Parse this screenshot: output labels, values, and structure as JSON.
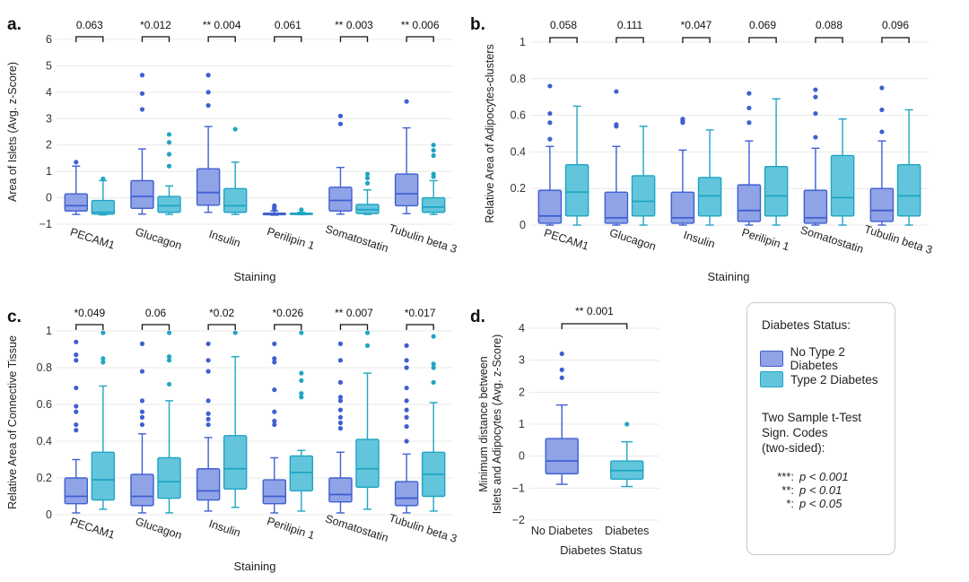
{
  "colors": {
    "no_t2d_fill": "#8FA3E6",
    "no_t2d_line": "#3F5FD1",
    "t2d_fill": "#63C5DB",
    "t2d_line": "#1FA5C4"
  },
  "staining_categories": [
    "PECAM1",
    "Glucagon",
    "Insulin",
    "Perilipin 1",
    "Somatostatin",
    "Tubulin beta 3"
  ],
  "chart_data": [
    {
      "panel": "a.",
      "type": "box",
      "xlabel": "Staining",
      "ylabel": "Area of Islets (Avg. z-Score)",
      "ylim": [
        -1,
        6
      ],
      "yticks": [
        -1,
        0,
        1,
        2,
        3,
        4,
        5,
        6
      ],
      "ytick_labels": [
        "−1",
        "0",
        "1",
        "2",
        "3",
        "4",
        "5",
        "6"
      ],
      "categories": [
        "PECAM1",
        "Glucagon",
        "Insulin",
        "Perilipin 1",
        "Somatostatin",
        "Tubulin beta 3"
      ],
      "significance": [
        "0.063",
        "*0.012",
        "** 0.004",
        "0.061",
        "** 0.003",
        "** 0.006"
      ],
      "series": [
        {
          "name": "No Type 2 Diabetes",
          "boxes": [
            {
              "min": -0.63,
              "q1": -0.5,
              "median": -0.3,
              "q3": 0.15,
              "max": 1.2,
              "outliers": [
                1.35
              ]
            },
            {
              "min": -0.62,
              "q1": -0.4,
              "median": 0.05,
              "q3": 0.65,
              "max": 1.85,
              "outliers": [
                3.35,
                3.95,
                4.65
              ]
            },
            {
              "min": -0.55,
              "q1": -0.28,
              "median": 0.2,
              "q3": 1.1,
              "max": 2.7,
              "outliers": [
                3.5,
                4.0,
                4.65
              ]
            },
            {
              "min": -0.66,
              "q1": -0.64,
              "median": -0.62,
              "q3": -0.58,
              "max": -0.5,
              "outliers": [
                -0.3,
                -0.35,
                -0.4,
                -0.45
              ]
            },
            {
              "min": -0.62,
              "q1": -0.5,
              "median": -0.1,
              "q3": 0.4,
              "max": 1.15,
              "outliers": [
                2.8,
                3.1
              ]
            },
            {
              "min": -0.6,
              "q1": -0.3,
              "median": 0.15,
              "q3": 0.9,
              "max": 2.65,
              "outliers": [
                3.65
              ]
            }
          ]
        },
        {
          "name": "Type 2 Diabetes",
          "boxes": [
            {
              "min": -0.65,
              "q1": -0.62,
              "median": -0.55,
              "q3": -0.1,
              "max": 0.65,
              "outliers": [
                0.72
              ]
            },
            {
              "min": -0.63,
              "q1": -0.55,
              "median": -0.3,
              "q3": 0.05,
              "max": 0.45,
              "outliers": [
                1.2,
                1.65,
                2.1,
                2.4
              ]
            },
            {
              "min": -0.63,
              "q1": -0.55,
              "median": -0.3,
              "q3": 0.35,
              "max": 1.35,
              "outliers": [
                2.6
              ]
            },
            {
              "min": -0.64,
              "q1": -0.63,
              "median": -0.61,
              "q3": -0.58,
              "max": -0.55,
              "outliers": [
                -0.45
              ]
            },
            {
              "min": -0.63,
              "q1": -0.6,
              "median": -0.45,
              "q3": -0.25,
              "max": 0.3,
              "outliers": [
                0.55,
                0.75,
                0.9
              ]
            },
            {
              "min": -0.63,
              "q1": -0.55,
              "median": -0.35,
              "q3": 0.0,
              "max": 0.65,
              "outliers": [
                0.8,
                0.9,
                1.6,
                1.8,
                2.0
              ]
            }
          ]
        }
      ]
    },
    {
      "panel": "b.",
      "type": "box",
      "xlabel": "Staining",
      "ylabel": "Relative Area of Adipocytes-clusters",
      "ylim": [
        0,
        1
      ],
      "yticks": [
        0,
        0.2,
        0.4,
        0.6,
        0.8,
        1
      ],
      "ytick_labels": [
        "0",
        "0.2",
        "0.4",
        "0.6",
        "0.8",
        "1"
      ],
      "categories": [
        "PECAM1",
        "Glucagon",
        "Insulin",
        "Perilipin 1",
        "Somatostatin",
        "Tubulin beta 3"
      ],
      "significance": [
        "0.058",
        "0.111",
        "*0.047",
        "0.069",
        "0.088",
        "0.096"
      ],
      "series": [
        {
          "name": "No Type 2 Diabetes",
          "boxes": [
            {
              "min": 0.0,
              "q1": 0.01,
              "median": 0.05,
              "q3": 0.19,
              "max": 0.43,
              "outliers": [
                0.47,
                0.56,
                0.61,
                0.76
              ]
            },
            {
              "min": 0.0,
              "q1": 0.01,
              "median": 0.04,
              "q3": 0.18,
              "max": 0.43,
              "outliers": [
                0.54,
                0.55,
                0.73
              ]
            },
            {
              "min": 0.0,
              "q1": 0.01,
              "median": 0.04,
              "q3": 0.18,
              "max": 0.41,
              "outliers": [
                0.56,
                0.57,
                0.58
              ]
            },
            {
              "min": 0.0,
              "q1": 0.02,
              "median": 0.08,
              "q3": 0.22,
              "max": 0.46,
              "outliers": [
                0.56,
                0.64,
                0.72
              ]
            },
            {
              "min": 0.0,
              "q1": 0.01,
              "median": 0.04,
              "q3": 0.19,
              "max": 0.42,
              "outliers": [
                0.48,
                0.61,
                0.7,
                0.74
              ]
            },
            {
              "min": 0.0,
              "q1": 0.02,
              "median": 0.08,
              "q3": 0.2,
              "max": 0.46,
              "outliers": [
                0.51,
                0.63,
                0.75
              ]
            }
          ]
        },
        {
          "name": "Type 2 Diabetes",
          "boxes": [
            {
              "min": 0.0,
              "q1": 0.05,
              "median": 0.18,
              "q3": 0.33,
              "max": 0.65,
              "outliers": []
            },
            {
              "min": 0.0,
              "q1": 0.05,
              "median": 0.13,
              "q3": 0.27,
              "max": 0.54,
              "outliers": []
            },
            {
              "min": 0.0,
              "q1": 0.05,
              "median": 0.16,
              "q3": 0.26,
              "max": 0.52,
              "outliers": []
            },
            {
              "min": 0.0,
              "q1": 0.05,
              "median": 0.16,
              "q3": 0.32,
              "max": 0.69,
              "outliers": []
            },
            {
              "min": 0.0,
              "q1": 0.05,
              "median": 0.15,
              "q3": 0.38,
              "max": 0.58,
              "outliers": []
            },
            {
              "min": 0.0,
              "q1": 0.05,
              "median": 0.16,
              "q3": 0.33,
              "max": 0.63,
              "outliers": []
            }
          ]
        }
      ]
    },
    {
      "panel": "c.",
      "type": "box",
      "xlabel": "Staining",
      "ylabel": "Relative Area of Connective Tissue",
      "ylim": [
        0,
        1
      ],
      "yticks": [
        0,
        0.2,
        0.4,
        0.6,
        0.8,
        1
      ],
      "ytick_labels": [
        "0",
        "0.2",
        "0.4",
        "0.6",
        "0.8",
        "1"
      ],
      "categories": [
        "PECAM1",
        "Glucagon",
        "Insulin",
        "Perilipin 1",
        "Somatostatin",
        "Tubulin beta 3"
      ],
      "significance": [
        "*0.049",
        "0.06",
        "*0.02",
        "*0.026",
        "** 0.007",
        "*0.017"
      ],
      "series": [
        {
          "name": "No Type 2 Diabetes",
          "boxes": [
            {
              "min": 0.01,
              "q1": 0.06,
              "median": 0.1,
              "q3": 0.2,
              "max": 0.3,
              "outliers": [
                0.46,
                0.49,
                0.56,
                0.59,
                0.69,
                0.84,
                0.87,
                0.94
              ]
            },
            {
              "min": 0.01,
              "q1": 0.05,
              "median": 0.1,
              "q3": 0.22,
              "max": 0.44,
              "outliers": [
                0.49,
                0.53,
                0.56,
                0.62,
                0.78,
                0.93
              ]
            },
            {
              "min": 0.02,
              "q1": 0.08,
              "median": 0.13,
              "q3": 0.25,
              "max": 0.42,
              "outliers": [
                0.49,
                0.52,
                0.55,
                0.62,
                0.78,
                0.84,
                0.93
              ]
            },
            {
              "min": 0.01,
              "q1": 0.06,
              "median": 0.1,
              "q3": 0.19,
              "max": 0.31,
              "outliers": [
                0.49,
                0.51,
                0.56,
                0.68,
                0.83,
                0.85,
                0.93
              ]
            },
            {
              "min": 0.01,
              "q1": 0.07,
              "median": 0.11,
              "q3": 0.2,
              "max": 0.34,
              "outliers": [
                0.47,
                0.5,
                0.53,
                0.57,
                0.62,
                0.64,
                0.72,
                0.84,
                0.93
              ]
            },
            {
              "min": 0.01,
              "q1": 0.05,
              "median": 0.09,
              "q3": 0.18,
              "max": 0.33,
              "outliers": [
                0.4,
                0.48,
                0.53,
                0.57,
                0.62,
                0.69,
                0.8,
                0.84,
                0.92
              ]
            }
          ]
        },
        {
          "name": "Type 2 Diabetes",
          "boxes": [
            {
              "min": 0.03,
              "q1": 0.08,
              "median": 0.19,
              "q3": 0.34,
              "max": 0.7,
              "outliers": [
                0.83,
                0.85,
                0.99
              ]
            },
            {
              "min": 0.01,
              "q1": 0.09,
              "median": 0.18,
              "q3": 0.31,
              "max": 0.62,
              "outliers": [
                0.71,
                0.84,
                0.86,
                0.99
              ]
            },
            {
              "min": 0.04,
              "q1": 0.14,
              "median": 0.25,
              "q3": 0.43,
              "max": 0.86,
              "outliers": [
                0.99
              ]
            },
            {
              "min": 0.02,
              "q1": 0.13,
              "median": 0.23,
              "q3": 0.32,
              "max": 0.35,
              "outliers": [
                0.64,
                0.66,
                0.73,
                0.77,
                0.99
              ]
            },
            {
              "min": 0.03,
              "q1": 0.15,
              "median": 0.25,
              "q3": 0.41,
              "max": 0.77,
              "outliers": [
                0.92,
                0.99
              ]
            },
            {
              "min": 0.02,
              "q1": 0.1,
              "median": 0.22,
              "q3": 0.34,
              "max": 0.61,
              "outliers": [
                0.72,
                0.8,
                0.82,
                0.97
              ]
            }
          ]
        }
      ]
    },
    {
      "panel": "d.",
      "type": "box",
      "xlabel": "Diabetes Status",
      "ylabel": "Minimum distance between Islets and Adipocytes (Avg. z-Score)",
      "ylabel_lines": [
        "Minimum distance between",
        "Islets and Adipocytes (Avg. z-Score)"
      ],
      "ylim": [
        -2,
        4
      ],
      "yticks": [
        -2,
        -1,
        0,
        1,
        2,
        3,
        4
      ],
      "ytick_labels": [
        "−2",
        "−1",
        "0",
        "1",
        "2",
        "3",
        "4"
      ],
      "categories": [
        "No Diabetes",
        "Diabetes"
      ],
      "significance": [
        "** 0.001"
      ],
      "boxes": [
        {
          "group": "No Diabetes",
          "min": -0.88,
          "q1": -0.55,
          "median": -0.15,
          "q3": 0.55,
          "max": 1.6,
          "outliers": [
            2.45,
            2.7,
            3.2
          ]
        },
        {
          "group": "Diabetes",
          "min": -0.95,
          "q1": -0.72,
          "median": -0.45,
          "q3": -0.15,
          "max": 0.45,
          "outliers": [
            1.0
          ]
        }
      ]
    }
  ],
  "legend": {
    "title": "Diabetes Status:",
    "items": [
      "No Type 2 Diabetes",
      "Type 2 Diabetes"
    ],
    "test_lines": [
      "Two Sample t-Test",
      "Sign. Codes",
      "(two-sided):"
    ],
    "codes": [
      {
        "sym": "***:",
        "p": "p < 0.001"
      },
      {
        "sym": "**:",
        "p": "p < 0.01"
      },
      {
        "sym": "*:",
        "p": "p < 0.05"
      }
    ]
  }
}
